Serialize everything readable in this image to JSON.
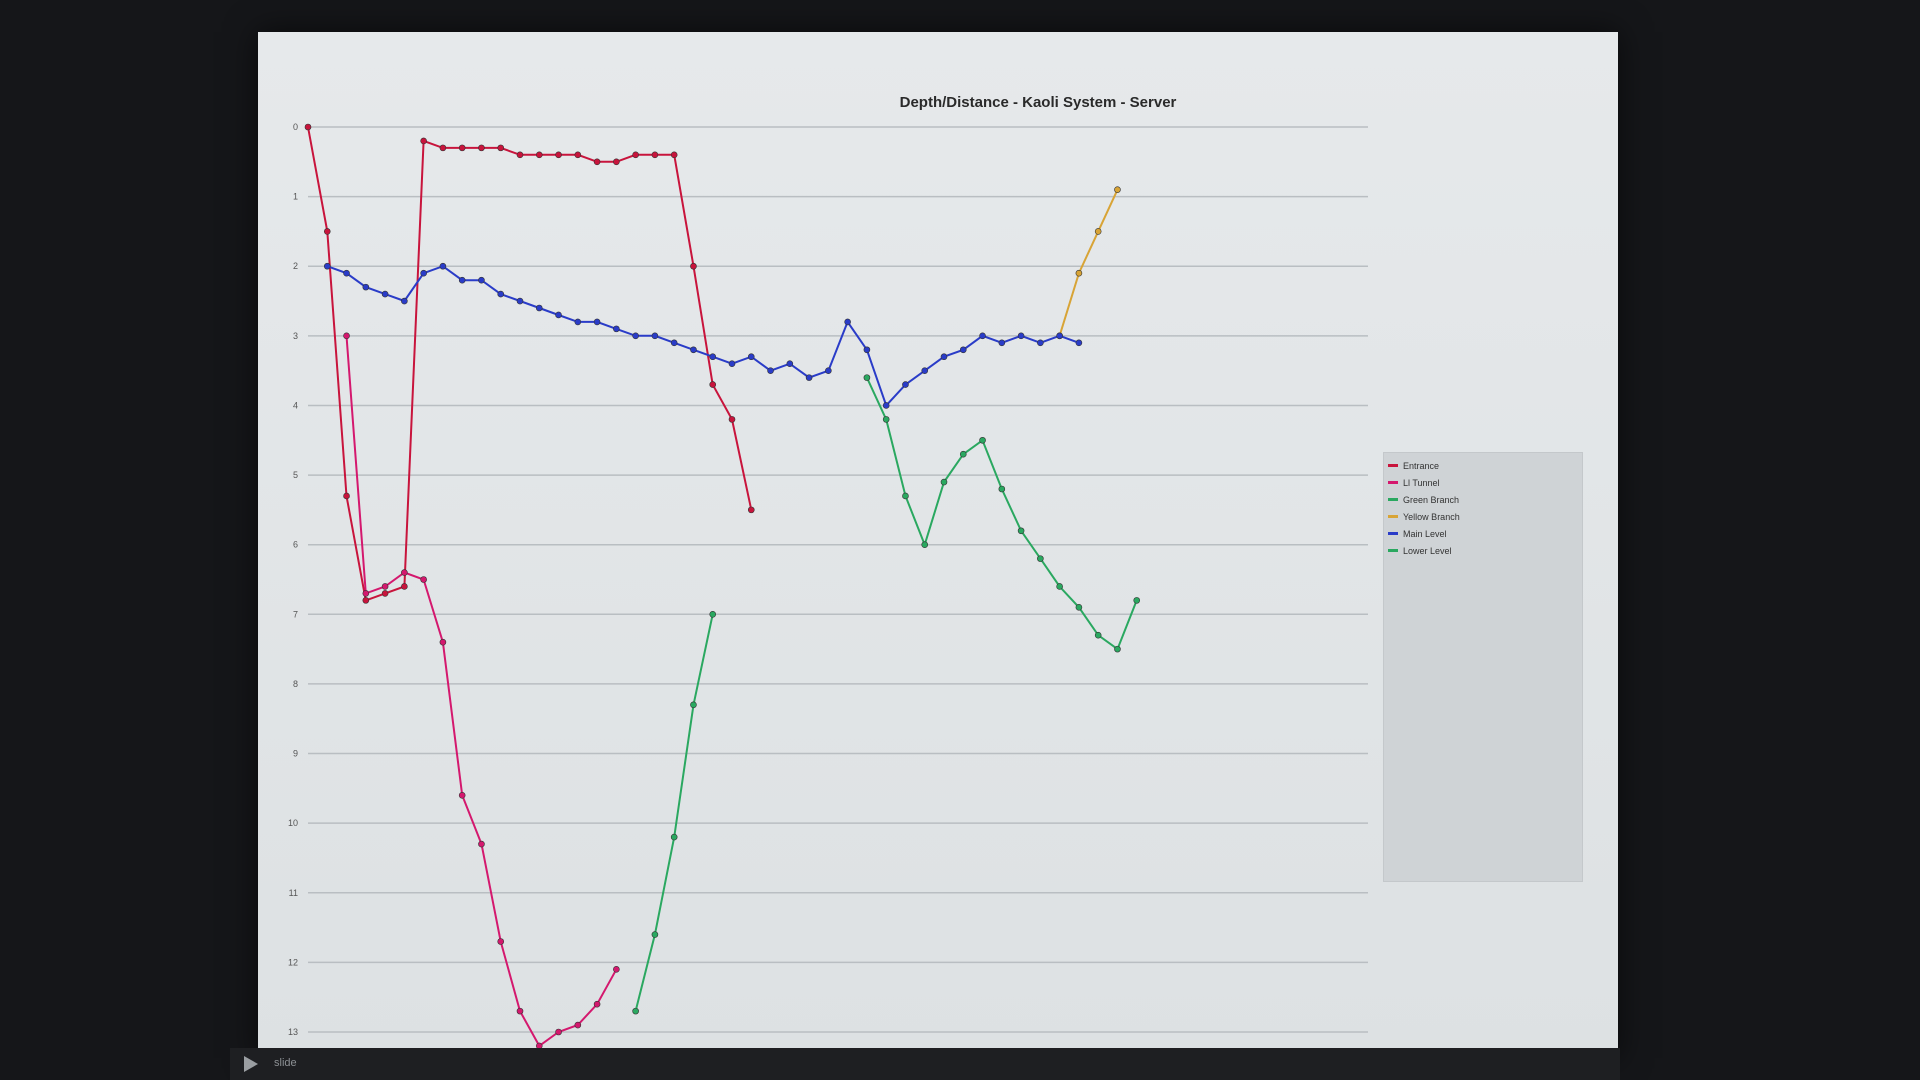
{
  "chart_data": {
    "type": "line",
    "title": "Depth/Distance - Kaoli System - Server",
    "xlabel": "",
    "ylabel": "",
    "grid": true,
    "legend_position": "right",
    "ylim": [
      0,
      13
    ],
    "y_ticks": [
      "0",
      "1",
      "2",
      "3",
      "4",
      "5",
      "6",
      "7",
      "8",
      "9",
      "10",
      "11",
      "12",
      "13"
    ],
    "x": [
      0,
      4,
      8,
      12,
      16,
      20,
      24,
      28,
      32,
      36,
      40,
      44,
      48,
      52,
      56,
      60,
      64,
      68,
      72,
      76,
      80,
      84,
      88,
      92,
      96,
      100,
      104,
      108,
      112,
      116,
      120,
      124,
      128,
      132,
      136,
      140,
      144,
      148,
      152,
      156,
      160,
      164,
      168,
      172,
      176,
      180
    ],
    "xlim": [
      0,
      220
    ],
    "series": [
      {
        "name": "Entrance",
        "color": "#c8143c",
        "values": [
          0.0,
          1.5,
          5.3,
          6.8,
          6.7,
          6.6,
          0.2,
          0.3,
          0.3,
          0.3,
          0.3,
          0.4,
          0.4,
          0.4,
          0.4,
          0.5,
          0.5,
          0.4,
          0.4,
          0.4,
          2.0,
          3.7,
          4.2,
          5.5,
          null,
          null,
          null,
          null,
          null,
          null,
          null,
          null,
          null,
          null,
          null,
          null,
          null,
          null,
          null,
          null,
          null,
          null,
          null,
          null,
          null,
          null
        ]
      },
      {
        "name": "Ll Tunnel",
        "color": "#d4186e",
        "values": [
          null,
          null,
          3.0,
          6.7,
          6.6,
          6.4,
          6.5,
          7.4,
          9.6,
          10.3,
          11.7,
          12.7,
          13.2,
          13.0,
          12.9,
          12.6,
          12.1,
          null,
          null,
          null,
          null,
          null,
          null,
          null,
          null,
          null,
          null,
          null,
          null,
          null,
          null,
          null,
          null,
          null,
          null,
          null,
          null,
          null,
          null,
          null,
          null,
          null,
          null,
          null,
          null,
          null
        ]
      },
      {
        "name": "Green Branch",
        "color": "#2aa860",
        "values": [
          null,
          null,
          null,
          null,
          null,
          null,
          null,
          null,
          null,
          null,
          null,
          null,
          null,
          null,
          null,
          null,
          null,
          12.7,
          11.6,
          10.2,
          8.3,
          7.0,
          null,
          null,
          null,
          null,
          null,
          null,
          null,
          null,
          null,
          null,
          null,
          null,
          null,
          null,
          null,
          null,
          null,
          null,
          null,
          null,
          null,
          null,
          null,
          null
        ]
      },
      {
        "name": "Yellow Branch",
        "color": "#d8a436",
        "values": [
          null,
          null,
          null,
          null,
          null,
          null,
          null,
          null,
          null,
          null,
          null,
          null,
          null,
          null,
          null,
          null,
          null,
          null,
          null,
          null,
          null,
          null,
          null,
          null,
          null,
          null,
          null,
          null,
          null,
          null,
          null,
          null,
          null,
          null,
          null,
          null,
          null,
          null,
          null,
          3.0,
          2.1,
          1.5,
          0.9,
          null,
          null,
          null
        ]
      },
      {
        "name": "Main Level",
        "color": "#2a3cc8",
        "values": [
          null,
          2.0,
          2.1,
          2.3,
          2.4,
          2.5,
          2.1,
          2.0,
          2.2,
          2.2,
          2.4,
          2.5,
          2.6,
          2.7,
          2.8,
          2.8,
          2.9,
          3.0,
          3.0,
          3.1,
          3.2,
          3.3,
          3.4,
          3.3,
          3.5,
          3.4,
          3.6,
          3.5,
          2.8,
          3.2,
          4.0,
          3.7,
          3.5,
          3.3,
          3.2,
          3.0,
          3.1,
          3.0,
          3.1,
          3.0,
          3.1,
          null,
          null,
          null,
          null,
          null
        ]
      },
      {
        "name": "Lower Level",
        "color": "#2aa860",
        "values": [
          null,
          null,
          null,
          null,
          null,
          null,
          null,
          null,
          null,
          null,
          null,
          null,
          null,
          null,
          null,
          null,
          null,
          null,
          null,
          null,
          null,
          null,
          null,
          null,
          null,
          null,
          null,
          null,
          null,
          3.6,
          4.2,
          5.3,
          6.0,
          5.1,
          4.7,
          4.5,
          5.2,
          5.8,
          6.2,
          6.6,
          6.9,
          7.3,
          7.5,
          6.8,
          null,
          null
        ]
      }
    ]
  },
  "legend_entries": [
    "Entrance",
    "Ll Tunnel",
    "Green Branch",
    "Yellow Branch",
    "Main Level",
    "Lower Level"
  ],
  "colors": {
    "screen_bg": "#e4e7e9",
    "gridline": "#b9bec2",
    "axis_text": "#555555"
  },
  "taskbar": {
    "play_icon": "play-icon",
    "label": "slide"
  }
}
